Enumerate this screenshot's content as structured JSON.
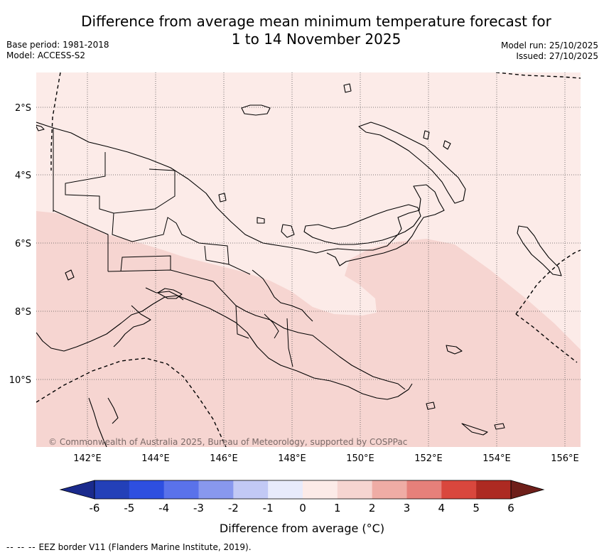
{
  "header": {
    "title_line1": "Difference from average mean minimum temperature forecast for",
    "title_line2": "1 to 14 November 2025",
    "base_period": "Base period: 1981-2018",
    "model": "Model: ACCESS-S2",
    "model_run": "Model run: 25/10/2025",
    "issued": "Issued: 27/10/2025"
  },
  "map": {
    "region": "Papua New Guinea",
    "latitude_labels": [
      "2°S",
      "4°S",
      "6°S",
      "8°S",
      "10°S"
    ],
    "longitude_labels": [
      "142°E",
      "144°E",
      "146°E",
      "148°E",
      "150°E",
      "152°E",
      "154°E",
      "156°E"
    ],
    "copyright": "© Commonwealth of Australia 2025, Bureau of Meteorology, supported by COSPPac",
    "colors": {
      "land_fill": "#fcebe8",
      "warm_zone": "#f6d5d1",
      "coast": "#000000",
      "grid": "#555555"
    }
  },
  "legend": {
    "ticks": [
      "-6",
      "-5",
      "-4",
      "-3",
      "-2",
      "-1",
      "0",
      "1",
      "2",
      "3",
      "4",
      "5",
      "6"
    ],
    "colors": [
      "#1a2a8c",
      "#2340b8",
      "#2e4fe0",
      "#5a72ea",
      "#8898ee",
      "#c2c9f5",
      "#e8ebfb",
      "#fcebe8",
      "#f6d5d1",
      "#efaca5",
      "#e6807a",
      "#d9473d",
      "#ad2a22",
      "#6e1f1a"
    ],
    "label": "Difference from average (°C)"
  },
  "footnote": {
    "dash": "-- -- --",
    "text": "EEZ border V11 (Flanders Marine Institute, 2019)."
  }
}
